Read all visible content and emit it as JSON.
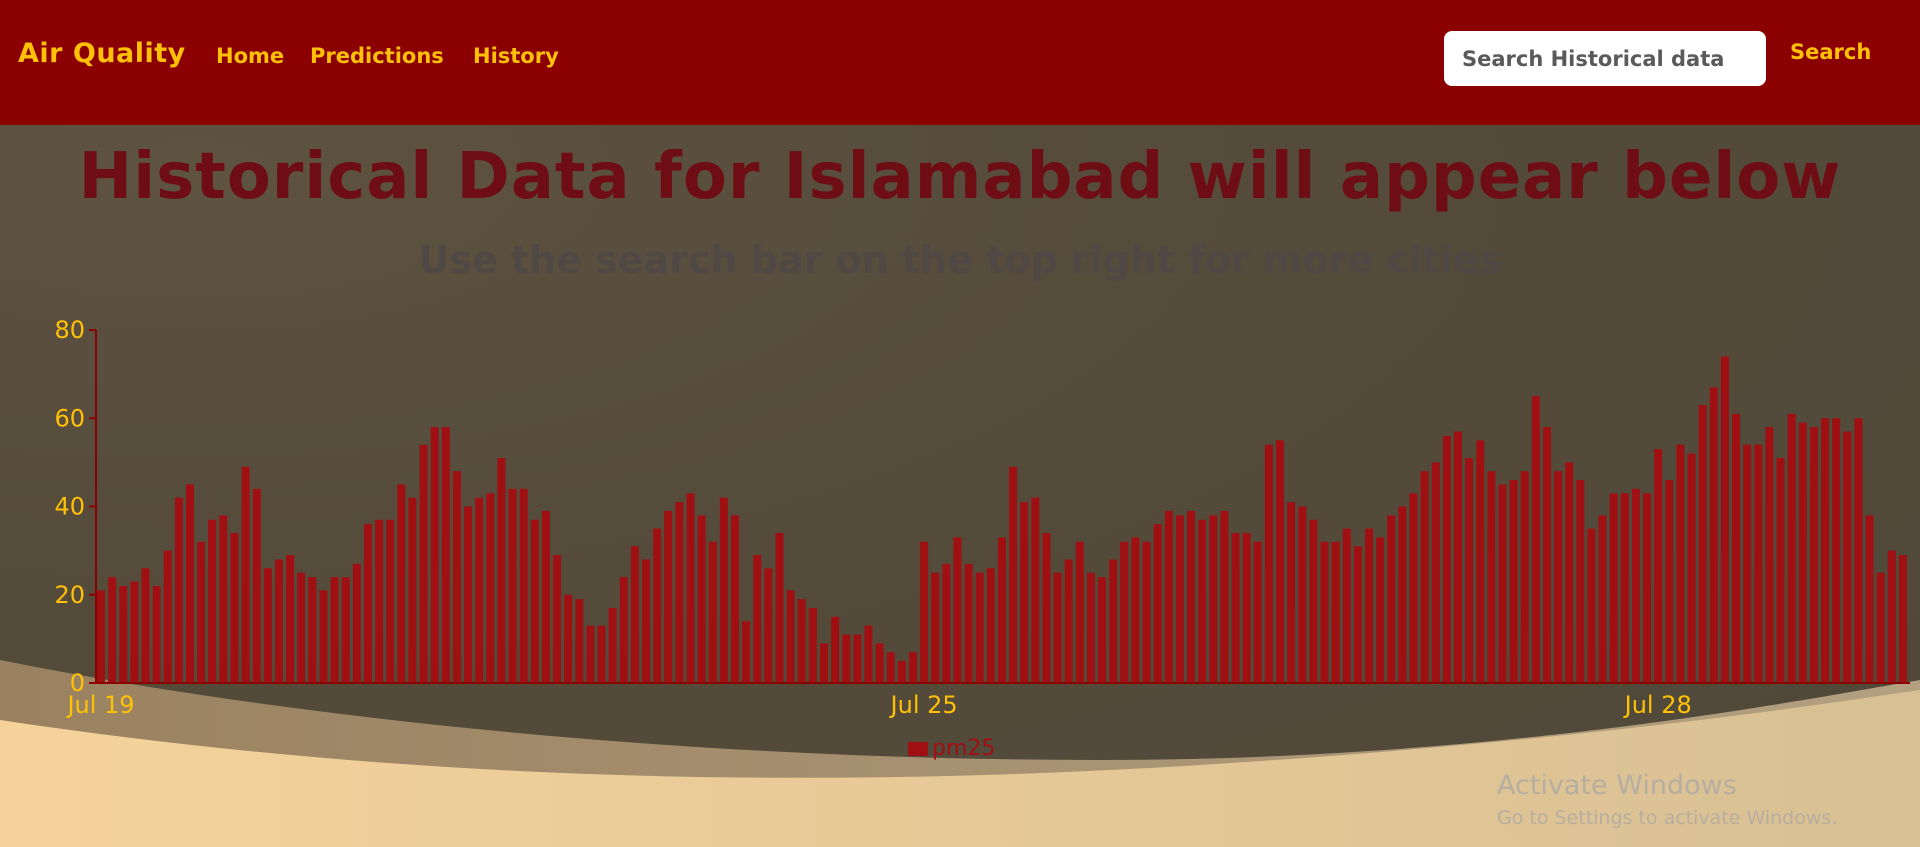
{
  "navbar": {
    "brand": "Air Quality",
    "links": [
      "Home",
      "Predictions",
      "History"
    ],
    "search_placeholder": "Search Historical data",
    "search_button": "Search"
  },
  "header": {
    "title": "Historical Data for Islamabad will appear below",
    "subtitle": "Use the search bar on the top right for more cities"
  },
  "colors": {
    "navbar": "#8b0000",
    "accent": "#ffc107",
    "bar": "#a01012",
    "title": "#6e0d13"
  },
  "chart_data": {
    "type": "bar",
    "series": [
      {
        "name": "pm25",
        "values": [
          21,
          24,
          22,
          23,
          26,
          22,
          30,
          42,
          45,
          32,
          37,
          38,
          34,
          49,
          44,
          26,
          28,
          29,
          25,
          24,
          21,
          24,
          24,
          27,
          36,
          37,
          37,
          45,
          42,
          54,
          58,
          58,
          48,
          40,
          42,
          43,
          51,
          44,
          44,
          37,
          39,
          29,
          20,
          19,
          13,
          13,
          17,
          24,
          31,
          28,
          35,
          39,
          41,
          43,
          38,
          32,
          42,
          38,
          14,
          29,
          26,
          34,
          21,
          19,
          17,
          9,
          15,
          11,
          11,
          13,
          9,
          7,
          5,
          7,
          32,
          25,
          27,
          33,
          27,
          25,
          26,
          33,
          49,
          41,
          42,
          34,
          25,
          28,
          32,
          25,
          24,
          28,
          32,
          33,
          32,
          36,
          39,
          38,
          39,
          37,
          38,
          39,
          34,
          34,
          32,
          54,
          55,
          41,
          40,
          37,
          32,
          32,
          35,
          31,
          35,
          33,
          38,
          40,
          43,
          48,
          50,
          56,
          57,
          51,
          55,
          48,
          45,
          46,
          48,
          65,
          58,
          48,
          50,
          46,
          35,
          38,
          43,
          43,
          44,
          43,
          53,
          46,
          54,
          52,
          63,
          67,
          74,
          61,
          54,
          54,
          58,
          51,
          61,
          59,
          58,
          60,
          60,
          57,
          60,
          38,
          25,
          30,
          29
        ]
      }
    ],
    "x_ticks": [
      "Jul 19",
      "Jul 25",
      "Jul 28"
    ],
    "y_ticks": [
      0,
      20,
      40,
      60,
      80
    ],
    "ylim": [
      0,
      80
    ],
    "legend": [
      "pm25"
    ],
    "legend_position": "bottom-center"
  },
  "watermark": {
    "title": "Activate Windows",
    "subtitle": "Go to Settings to activate Windows."
  }
}
